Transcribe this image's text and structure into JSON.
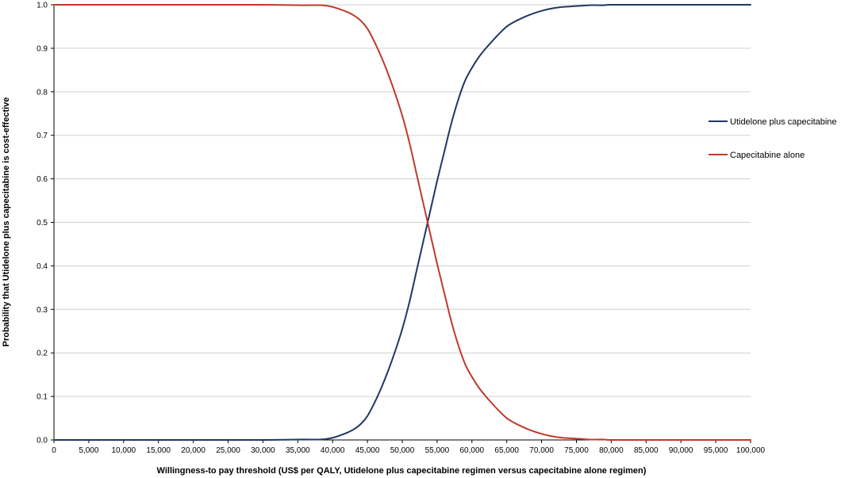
{
  "chart_data": {
    "type": "line",
    "title": "",
    "xlabel": "Willingness-to pay threshold (US$ per QALY, Utidelone plus capecitabine regimen versus capecitabine alone regimen)",
    "ylabel": "Probability that Utidelone plus capecitabine is cost-effective",
    "xlim": [
      0,
      100000
    ],
    "ylim": [
      0,
      1
    ],
    "x_ticks": [
      "0",
      "5,000",
      "10,000",
      "15,000",
      "20,000",
      "25,000",
      "30,000",
      "35,000",
      "40,000",
      "45,000",
      "50,000",
      "55,000",
      "60,000",
      "65,000",
      "70,000",
      "75,000",
      "80,000",
      "85,000",
      "90,000",
      "95,000",
      "100,000"
    ],
    "y_ticks": [
      "0.0",
      "0.1",
      "0.2",
      "0.3",
      "0.4",
      "0.5",
      "0.6",
      "0.7",
      "0.8",
      "0.9",
      "1.0"
    ],
    "grid": "horizontal",
    "legend_position": "right",
    "series": [
      {
        "name": "Utidelone plus capecitabine",
        "color": "#1f3864",
        "x": [
          0,
          5000,
          10000,
          15000,
          20000,
          25000,
          30000,
          35000,
          38000,
          39000,
          40000,
          41000,
          42000,
          43000,
          44000,
          45000,
          46000,
          47000,
          48000,
          49000,
          50000,
          51000,
          52000,
          53000,
          54000,
          55000,
          56000,
          57000,
          58000,
          59000,
          60000,
          61000,
          62000,
          63000,
          64000,
          65000,
          66000,
          67000,
          68000,
          69000,
          70000,
          71000,
          72000,
          73000,
          74000,
          75000,
          76000,
          77000,
          78000,
          79000,
          80000,
          85000,
          90000,
          95000,
          100000
        ],
        "y": [
          0,
          0,
          0,
          0,
          0,
          0,
          0,
          0.001,
          0.001,
          0.002,
          0.005,
          0.01,
          0.016,
          0.024,
          0.036,
          0.055,
          0.085,
          0.12,
          0.16,
          0.205,
          0.255,
          0.315,
          0.385,
          0.455,
          0.525,
          0.595,
          0.66,
          0.725,
          0.78,
          0.825,
          0.855,
          0.88,
          0.9,
          0.918,
          0.935,
          0.95,
          0.96,
          0.968,
          0.975,
          0.981,
          0.986,
          0.99,
          0.993,
          0.995,
          0.996,
          0.997,
          0.998,
          0.999,
          0.999,
          0.999,
          1.0,
          1.0,
          1.0,
          1.0,
          1.0
        ]
      },
      {
        "name": "Capecitabine alone",
        "color": "#c0392b",
        "x": [
          0,
          5000,
          10000,
          15000,
          20000,
          25000,
          30000,
          35000,
          38000,
          39000,
          40000,
          41000,
          42000,
          43000,
          44000,
          45000,
          46000,
          47000,
          48000,
          49000,
          50000,
          51000,
          52000,
          53000,
          54000,
          55000,
          56000,
          57000,
          58000,
          59000,
          60000,
          61000,
          62000,
          63000,
          64000,
          65000,
          66000,
          67000,
          68000,
          69000,
          70000,
          71000,
          72000,
          73000,
          74000,
          75000,
          76000,
          77000,
          78000,
          79000,
          80000,
          85000,
          90000,
          95000,
          100000
        ],
        "y": [
          1,
          1,
          1,
          1,
          1,
          1,
          1,
          0.999,
          0.999,
          0.998,
          0.995,
          0.99,
          0.984,
          0.976,
          0.964,
          0.945,
          0.915,
          0.88,
          0.84,
          0.795,
          0.745,
          0.685,
          0.615,
          0.545,
          0.475,
          0.405,
          0.34,
          0.275,
          0.22,
          0.175,
          0.145,
          0.12,
          0.1,
          0.082,
          0.065,
          0.05,
          0.04,
          0.032,
          0.025,
          0.019,
          0.014,
          0.01,
          0.007,
          0.005,
          0.004,
          0.003,
          0.002,
          0.001,
          0.001,
          0.001,
          0,
          0,
          0,
          0,
          0
        ]
      }
    ]
  }
}
